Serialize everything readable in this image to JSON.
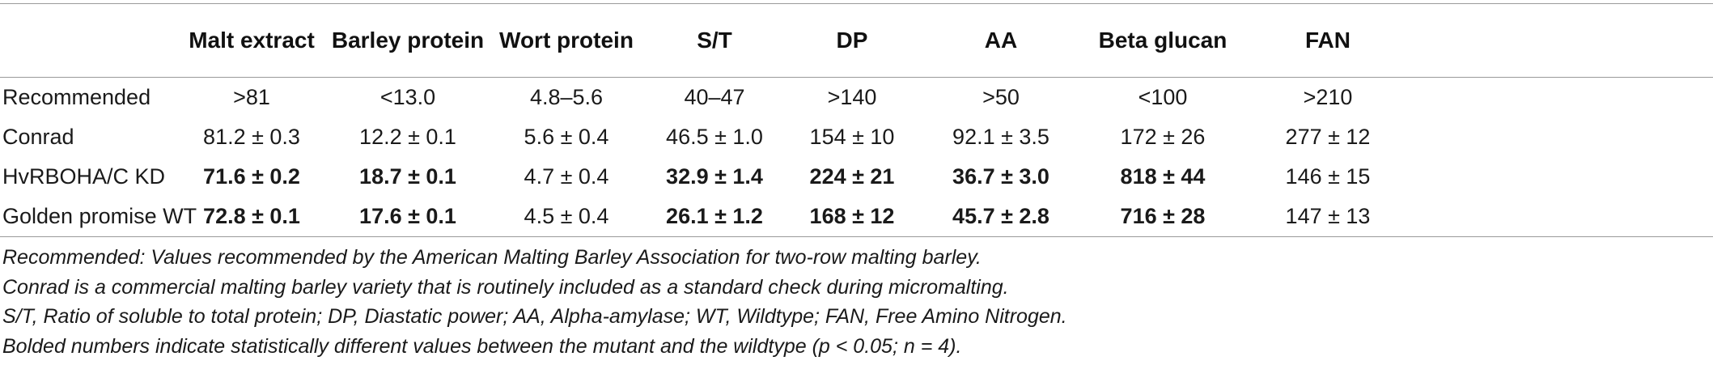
{
  "table": {
    "headers": [
      "",
      "Malt extract",
      "Barley protein",
      "Wort protein",
      "S/T",
      "DP",
      "AA",
      "Beta glucan",
      "FAN"
    ],
    "rows": [
      {
        "label": "Recommended",
        "cells": [
          {
            "text": ">81",
            "bold": false
          },
          {
            "text": "<13.0",
            "bold": false
          },
          {
            "text": "4.8–5.6",
            "bold": false
          },
          {
            "text": "40–47",
            "bold": false
          },
          {
            "text": ">140",
            "bold": false
          },
          {
            "text": ">50",
            "bold": false
          },
          {
            "text": "<100",
            "bold": false
          },
          {
            "text": ">210",
            "bold": false
          }
        ]
      },
      {
        "label": "Conrad",
        "cells": [
          {
            "text": "81.2 ± 0.3",
            "bold": false
          },
          {
            "text": "12.2 ± 0.1",
            "bold": false
          },
          {
            "text": "5.6 ± 0.4",
            "bold": false
          },
          {
            "text": "46.5 ± 1.0",
            "bold": false
          },
          {
            "text": "154 ± 10",
            "bold": false
          },
          {
            "text": "92.1 ± 3.5",
            "bold": false
          },
          {
            "text": "172 ± 26",
            "bold": false
          },
          {
            "text": "277 ± 12",
            "bold": false
          }
        ]
      },
      {
        "label": "HvRBOHA/C KD",
        "cells": [
          {
            "text": "71.6 ± 0.2",
            "bold": true
          },
          {
            "text": "18.7 ± 0.1",
            "bold": true
          },
          {
            "text": "4.7 ± 0.4",
            "bold": false
          },
          {
            "text": "32.9 ± 1.4",
            "bold": true
          },
          {
            "text": "224 ± 21",
            "bold": true
          },
          {
            "text": "36.7 ± 3.0",
            "bold": true
          },
          {
            "text": "818 ± 44",
            "bold": true
          },
          {
            "text": "146 ± 15",
            "bold": false
          }
        ]
      },
      {
        "label": "Golden promise WT",
        "cells": [
          {
            "text": "72.8 ± 0.1",
            "bold": true
          },
          {
            "text": "17.6 ± 0.1",
            "bold": true
          },
          {
            "text": "4.5 ± 0.4",
            "bold": false
          },
          {
            "text": "26.1 ± 1.2",
            "bold": true
          },
          {
            "text": "168 ± 12",
            "bold": true
          },
          {
            "text": "45.7 ± 2.8",
            "bold": true
          },
          {
            "text": "716 ± 28",
            "bold": true
          },
          {
            "text": "147 ± 13",
            "bold": false
          }
        ]
      }
    ]
  },
  "footnotes": [
    "Recommended: Values recommended by the American Malting Barley Association for two-row malting barley.",
    "Conrad is a commercial malting barley variety that is routinely included as a standard check during micromalting.",
    "S/T, Ratio of soluble to total protein; DP, Diastatic power; AA, Alpha-amylase; WT, Wildtype; FAN, Free Amino Nitrogen.",
    "Bolded numbers indicate statistically different values between the mutant and the wildtype (p < 0.05; n = 4)."
  ]
}
